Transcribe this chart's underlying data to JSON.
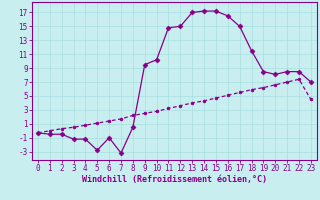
{
  "xlabel": "Windchill (Refroidissement éolien,°C)",
  "bg_color": "#c8eef0",
  "grid_color": "#a8dde0",
  "line_color": "#880088",
  "x_ticks": [
    0,
    1,
    2,
    3,
    4,
    5,
    6,
    7,
    8,
    9,
    10,
    11,
    12,
    13,
    14,
    15,
    16,
    17,
    18,
    19,
    20,
    21,
    22,
    23
  ],
  "y_ticks": [
    -3,
    -1,
    1,
    3,
    5,
    7,
    9,
    11,
    13,
    15,
    17
  ],
  "ylim": [
    -4.2,
    18.5
  ],
  "xlim": [
    -0.5,
    23.5
  ],
  "curve1_x": [
    0,
    1,
    2,
    3,
    4,
    5,
    6,
    7,
    8,
    9,
    10,
    11,
    12,
    13,
    14,
    15,
    16,
    17,
    18,
    19,
    20,
    21,
    22,
    23
  ],
  "curve1_y": [
    -0.3,
    -0.5,
    -0.5,
    -1.2,
    -1.2,
    -2.8,
    -1.0,
    -3.2,
    0.5,
    9.5,
    10.2,
    14.8,
    15.0,
    17.0,
    17.2,
    17.2,
    16.5,
    15.0,
    11.5,
    8.5,
    8.1,
    8.5,
    8.5,
    7.0
  ],
  "curve2_x": [
    0,
    1,
    2,
    3,
    4,
    5,
    6,
    7,
    8,
    9,
    10,
    11,
    12,
    13,
    14,
    15,
    16,
    17,
    18,
    19,
    20,
    21,
    22,
    23
  ],
  "curve2_y": [
    -0.3,
    0.0,
    0.3,
    0.5,
    0.8,
    1.1,
    1.4,
    1.7,
    2.2,
    2.5,
    2.8,
    3.2,
    3.6,
    4.0,
    4.3,
    4.7,
    5.1,
    5.5,
    5.9,
    6.2,
    6.6,
    7.0,
    7.4,
    4.5
  ],
  "tick_fontsize": 5.5,
  "xlabel_fontsize": 6.0
}
